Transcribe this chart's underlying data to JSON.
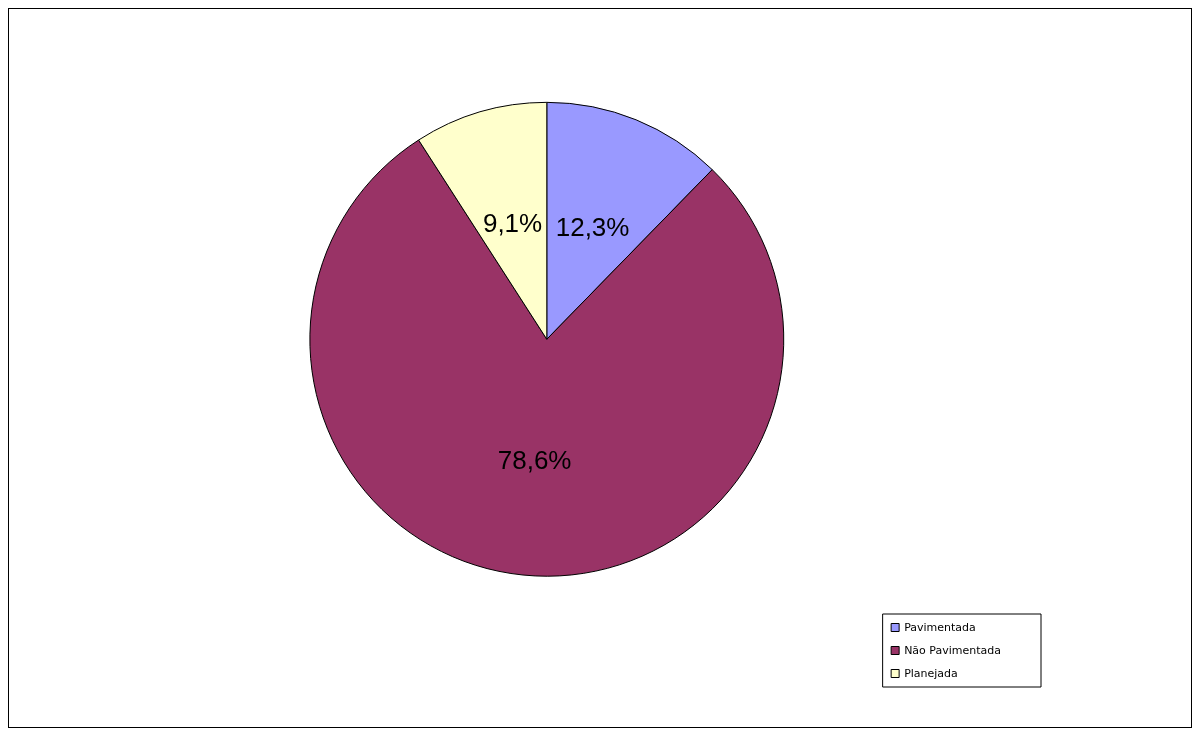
{
  "chart_data": {
    "type": "pie",
    "categories": [
      "Pavimentada",
      "Não Pavimentada",
      "Planejada"
    ],
    "values": [
      12.3,
      78.6,
      9.1
    ],
    "colors": [
      "#9999ff",
      "#993366",
      "#ffffcc"
    ],
    "value_labels": [
      "12,3%",
      "78,6%",
      "9,1%"
    ],
    "legend": "bottom right"
  }
}
